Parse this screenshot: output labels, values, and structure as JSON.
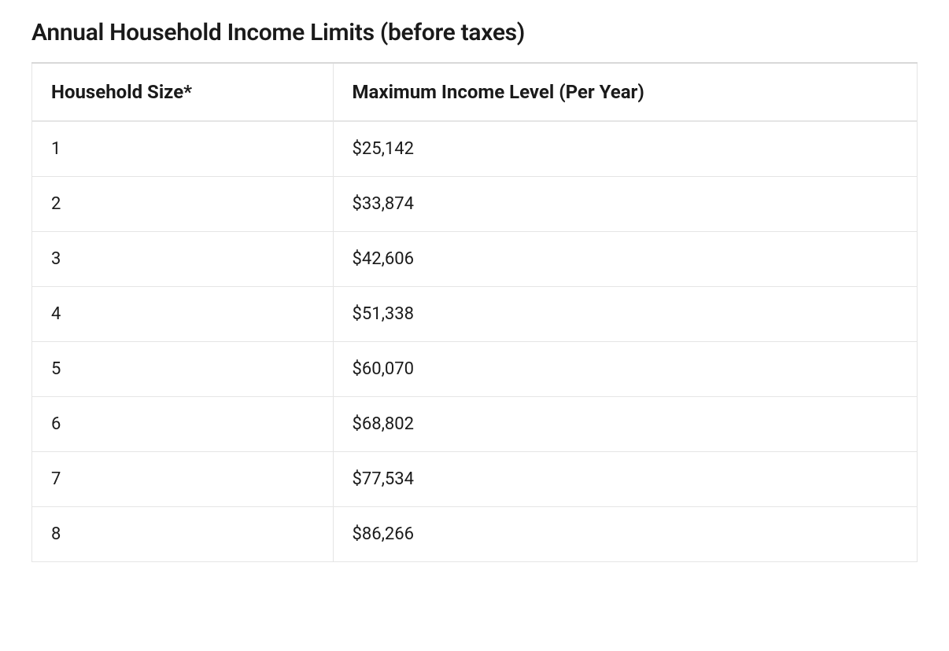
{
  "title": "Annual Household Income Limits (before taxes)",
  "table": {
    "type": "table",
    "columns": [
      "Household Size*",
      "Maximum Income Level (Per Year)"
    ],
    "rows": [
      [
        "1",
        "$25,142"
      ],
      [
        "2",
        "$33,874"
      ],
      [
        "3",
        "$42,606"
      ],
      [
        "4",
        "$51,338"
      ],
      [
        "5",
        "$60,070"
      ],
      [
        "6",
        "$68,802"
      ],
      [
        "7",
        "$77,534"
      ],
      [
        "8",
        "$86,266"
      ]
    ],
    "column_widths": [
      "34%",
      "66%"
    ],
    "header_fontsize": 24,
    "header_fontweight": 700,
    "cell_fontsize": 22,
    "cell_fontweight": 400,
    "border_color": "#e5e5e5",
    "top_border_color": "#d8d8d8",
    "background_color": "#ffffff",
    "text_color": "#1a1a1a",
    "cell_padding": "22px 24px"
  },
  "title_fontsize": 30,
  "title_fontweight": 600,
  "title_color": "#1a1a1a"
}
